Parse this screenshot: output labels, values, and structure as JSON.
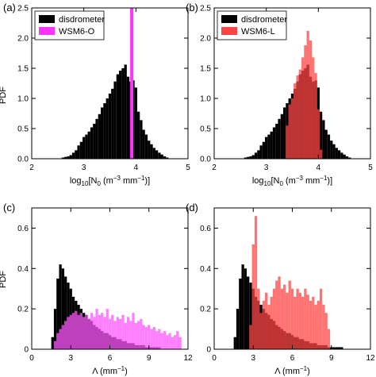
{
  "chart_data": [
    {
      "panel_label": "(a)",
      "type": "bar",
      "xlabel_parts": [
        "log",
        "10",
        "[N",
        "0",
        " (m",
        "−3",
        " mm",
        "−1",
        ")]"
      ],
      "ylabel": "PDF",
      "xlim": [
        2,
        5
      ],
      "ylim": [
        0,
        2.5
      ],
      "xticks": [
        2,
        3,
        4,
        5
      ],
      "yticks": [
        0.0,
        0.5,
        1.0,
        1.5,
        2.0,
        2.5
      ],
      "ytick_labels": [
        "0.0",
        "0.5",
        "1.0",
        "1.5",
        "2.0",
        "2.5"
      ],
      "legend_position": "top-left",
      "series": [
        {
          "name": "disdrometer",
          "color": "#000000",
          "bin_width": 0.05,
          "x": [
            2.6,
            2.65,
            2.7,
            2.75,
            2.8,
            2.85,
            2.9,
            2.95,
            3.0,
            3.05,
            3.1,
            3.15,
            3.2,
            3.25,
            3.3,
            3.35,
            3.4,
            3.45,
            3.5,
            3.55,
            3.6,
            3.65,
            3.7,
            3.75,
            3.8,
            3.85,
            3.9,
            3.95,
            4.0,
            4.05,
            4.1,
            4.15,
            4.2,
            4.25,
            4.3,
            4.35,
            4.4,
            4.45,
            4.5,
            4.55,
            4.6
          ],
          "values": [
            0.02,
            0.03,
            0.04,
            0.06,
            0.1,
            0.14,
            0.22,
            0.28,
            0.36,
            0.4,
            0.45,
            0.52,
            0.58,
            0.66,
            0.74,
            0.85,
            0.92,
            1.0,
            1.08,
            1.16,
            1.28,
            1.4,
            1.46,
            1.5,
            1.56,
            1.36,
            1.28,
            1.3,
            1.18,
            0.78,
            0.64,
            0.48,
            0.4,
            0.3,
            0.24,
            0.18,
            0.14,
            0.1,
            0.07,
            0.04,
            0.02
          ]
        },
        {
          "name": "WSM6-O",
          "color": "#ff33ff",
          "type": "vline",
          "x": 3.92,
          "note_value": ""
        }
      ]
    },
    {
      "panel_label": "(b)",
      "type": "bar",
      "xlabel_parts": [
        "log",
        "10",
        "[N",
        "0",
        " (m",
        "−3",
        " mm",
        "−1",
        ")]"
      ],
      "ylabel": "",
      "xlim": [
        2,
        5
      ],
      "ylim": [
        0,
        2.5
      ],
      "xticks": [
        2,
        3,
        4,
        5
      ],
      "yticks": [
        0.0,
        0.5,
        1.0,
        1.5,
        2.0,
        2.5
      ],
      "ytick_labels": [
        "0.0",
        "0.5",
        "1.0",
        "1.5",
        "2.0",
        "2.5"
      ],
      "legend_position": "top-left",
      "series": [
        {
          "name": "disdrometer",
          "color": "#000000",
          "bin_width": 0.05,
          "x": [
            2.6,
            2.65,
            2.7,
            2.75,
            2.8,
            2.85,
            2.9,
            2.95,
            3.0,
            3.05,
            3.1,
            3.15,
            3.2,
            3.25,
            3.3,
            3.35,
            3.4,
            3.45,
            3.5,
            3.55,
            3.6,
            3.65,
            3.7,
            3.75,
            3.8,
            3.85,
            3.9,
            3.95,
            4.0,
            4.05,
            4.1,
            4.15,
            4.2,
            4.25,
            4.3,
            4.35,
            4.4,
            4.45,
            4.5,
            4.55,
            4.6
          ],
          "values": [
            0.02,
            0.03,
            0.04,
            0.06,
            0.1,
            0.14,
            0.22,
            0.28,
            0.36,
            0.4,
            0.45,
            0.52,
            0.58,
            0.66,
            0.74,
            0.85,
            0.92,
            1.0,
            1.08,
            1.16,
            1.28,
            1.4,
            1.46,
            1.5,
            1.56,
            1.36,
            1.28,
            1.3,
            1.18,
            0.78,
            0.64,
            0.48,
            0.4,
            0.3,
            0.24,
            0.18,
            0.14,
            0.1,
            0.07,
            0.04,
            0.02
          ]
        },
        {
          "name": "WSM6-L",
          "color": "#ff4444",
          "bin_width": 0.05,
          "x": [
            3.4,
            3.45,
            3.5,
            3.55,
            3.6,
            3.65,
            3.7,
            3.75,
            3.8,
            3.85,
            3.9,
            3.95,
            4.0,
            4.05
          ],
          "values": [
            0.55,
            0.9,
            1.0,
            1.25,
            1.38,
            1.48,
            1.68,
            1.88,
            2.12,
            1.96,
            1.68,
            1.42,
            0.82,
            0.15
          ]
        }
      ]
    },
    {
      "panel_label": "(c)",
      "type": "bar",
      "xlabel_parts": [
        "Λ (mm",
        "−1",
        ")"
      ],
      "ylabel": "PDF",
      "xlim": [
        0,
        12
      ],
      "ylim": [
        0,
        0.7
      ],
      "xticks": [
        0,
        3,
        6,
        9,
        12
      ],
      "yticks": [
        0.0,
        0.2,
        0.4,
        0.6
      ],
      "ytick_labels": [
        "0",
        "0.2",
        "0.4",
        "0.6"
      ],
      "series": [
        {
          "name": "disdrometer",
          "color": "#000000",
          "bin_width": 0.2,
          "x": [
            1.6,
            1.8,
            2.0,
            2.2,
            2.4,
            2.6,
            2.8,
            3.0,
            3.2,
            3.4,
            3.6,
            3.8,
            4.0,
            4.2,
            4.4,
            4.6,
            4.8,
            5.0,
            5.2,
            5.4,
            5.6,
            5.8,
            6.0,
            6.2,
            6.4,
            6.6,
            6.8,
            7.0,
            7.2,
            7.4,
            7.6,
            7.8,
            8.0,
            8.2,
            8.4,
            8.6,
            8.8,
            9.0,
            9.2,
            9.4,
            9.6,
            9.8
          ],
          "values": [
            0.06,
            0.2,
            0.35,
            0.42,
            0.4,
            0.36,
            0.33,
            0.3,
            0.26,
            0.24,
            0.22,
            0.2,
            0.18,
            0.17,
            0.15,
            0.14,
            0.12,
            0.11,
            0.1,
            0.09,
            0.08,
            0.08,
            0.07,
            0.06,
            0.06,
            0.05,
            0.05,
            0.04,
            0.04,
            0.03,
            0.03,
            0.03,
            0.02,
            0.02,
            0.02,
            0.02,
            0.01,
            0.01,
            0.01,
            0.01,
            0.01,
            0.01
          ]
        },
        {
          "name": "WSM6-O",
          "color": "#ff55ff",
          "bin_width": 0.2,
          "x": [
            1.8,
            2.0,
            2.2,
            2.4,
            2.6,
            2.8,
            3.0,
            3.2,
            3.4,
            3.6,
            3.8,
            4.0,
            4.2,
            4.4,
            4.6,
            4.8,
            5.0,
            5.2,
            5.4,
            5.6,
            5.8,
            6.0,
            6.2,
            6.4,
            6.6,
            6.8,
            7.0,
            7.2,
            7.4,
            7.6,
            7.8,
            8.0,
            8.2,
            8.4,
            8.6,
            8.8,
            9.0,
            9.2,
            9.4,
            9.6,
            9.8,
            10.0,
            10.2,
            10.4,
            10.6,
            10.8,
            11.0,
            11.2,
            11.4
          ],
          "values": [
            0.04,
            0.08,
            0.1,
            0.12,
            0.14,
            0.16,
            0.17,
            0.18,
            0.19,
            0.17,
            0.18,
            0.16,
            0.17,
            0.15,
            0.18,
            0.16,
            0.2,
            0.17,
            0.18,
            0.16,
            0.2,
            0.15,
            0.17,
            0.14,
            0.16,
            0.15,
            0.17,
            0.13,
            0.16,
            0.14,
            0.18,
            0.13,
            0.14,
            0.15,
            0.12,
            0.11,
            0.12,
            0.1,
            0.11,
            0.09,
            0.1,
            0.08,
            0.09,
            0.07,
            0.08,
            0.06,
            0.07,
            0.09,
            0.06
          ]
        }
      ]
    },
    {
      "panel_label": "(d)",
      "type": "bar",
      "xlabel_parts": [
        "Λ (mm",
        "−1",
        ")"
      ],
      "ylabel": "",
      "xlim": [
        0,
        12
      ],
      "ylim": [
        0,
        0.7
      ],
      "xticks": [
        0,
        3,
        6,
        9,
        12
      ],
      "yticks": [
        0.0,
        0.2,
        0.4,
        0.6
      ],
      "ytick_labels": [
        "0",
        "0.2",
        "0.4",
        "0.6"
      ],
      "series": [
        {
          "name": "disdrometer",
          "color": "#000000",
          "bin_width": 0.2,
          "x": [
            1.6,
            1.8,
            2.0,
            2.2,
            2.4,
            2.6,
            2.8,
            3.0,
            3.2,
            3.4,
            3.6,
            3.8,
            4.0,
            4.2,
            4.4,
            4.6,
            4.8,
            5.0,
            5.2,
            5.4,
            5.6,
            5.8,
            6.0,
            6.2,
            6.4,
            6.6,
            6.8,
            7.0,
            7.2,
            7.4,
            7.6,
            7.8,
            8.0,
            8.2,
            8.4,
            8.6,
            8.8,
            9.0,
            9.2,
            9.4,
            9.6,
            9.8
          ],
          "values": [
            0.06,
            0.2,
            0.35,
            0.42,
            0.4,
            0.36,
            0.33,
            0.3,
            0.26,
            0.24,
            0.22,
            0.2,
            0.18,
            0.17,
            0.15,
            0.14,
            0.12,
            0.11,
            0.1,
            0.09,
            0.08,
            0.08,
            0.07,
            0.06,
            0.06,
            0.05,
            0.05,
            0.04,
            0.04,
            0.03,
            0.03,
            0.03,
            0.02,
            0.02,
            0.02,
            0.02,
            0.01,
            0.01,
            0.01,
            0.01,
            0.01,
            0.01
          ]
        },
        {
          "name": "WSM6-L",
          "color": "#ff4444",
          "bin_width": 0.2,
          "x": [
            2.8,
            3.0,
            3.2,
            3.4,
            3.6,
            3.8,
            4.0,
            4.2,
            4.4,
            4.6,
            4.8,
            5.0,
            5.2,
            5.4,
            5.6,
            5.8,
            6.0,
            6.2,
            6.4,
            6.6,
            6.8,
            7.0,
            7.2,
            7.4,
            7.6,
            7.8,
            8.0,
            8.2,
            8.4,
            8.6,
            8.8
          ],
          "values": [
            0.12,
            0.52,
            0.66,
            0.3,
            0.18,
            0.24,
            0.28,
            0.22,
            0.26,
            0.3,
            0.34,
            0.36,
            0.3,
            0.32,
            0.28,
            0.34,
            0.3,
            0.26,
            0.3,
            0.28,
            0.26,
            0.3,
            0.27,
            0.24,
            0.26,
            0.22,
            0.24,
            0.3,
            0.22,
            0.18,
            0.1
          ]
        }
      ]
    }
  ]
}
